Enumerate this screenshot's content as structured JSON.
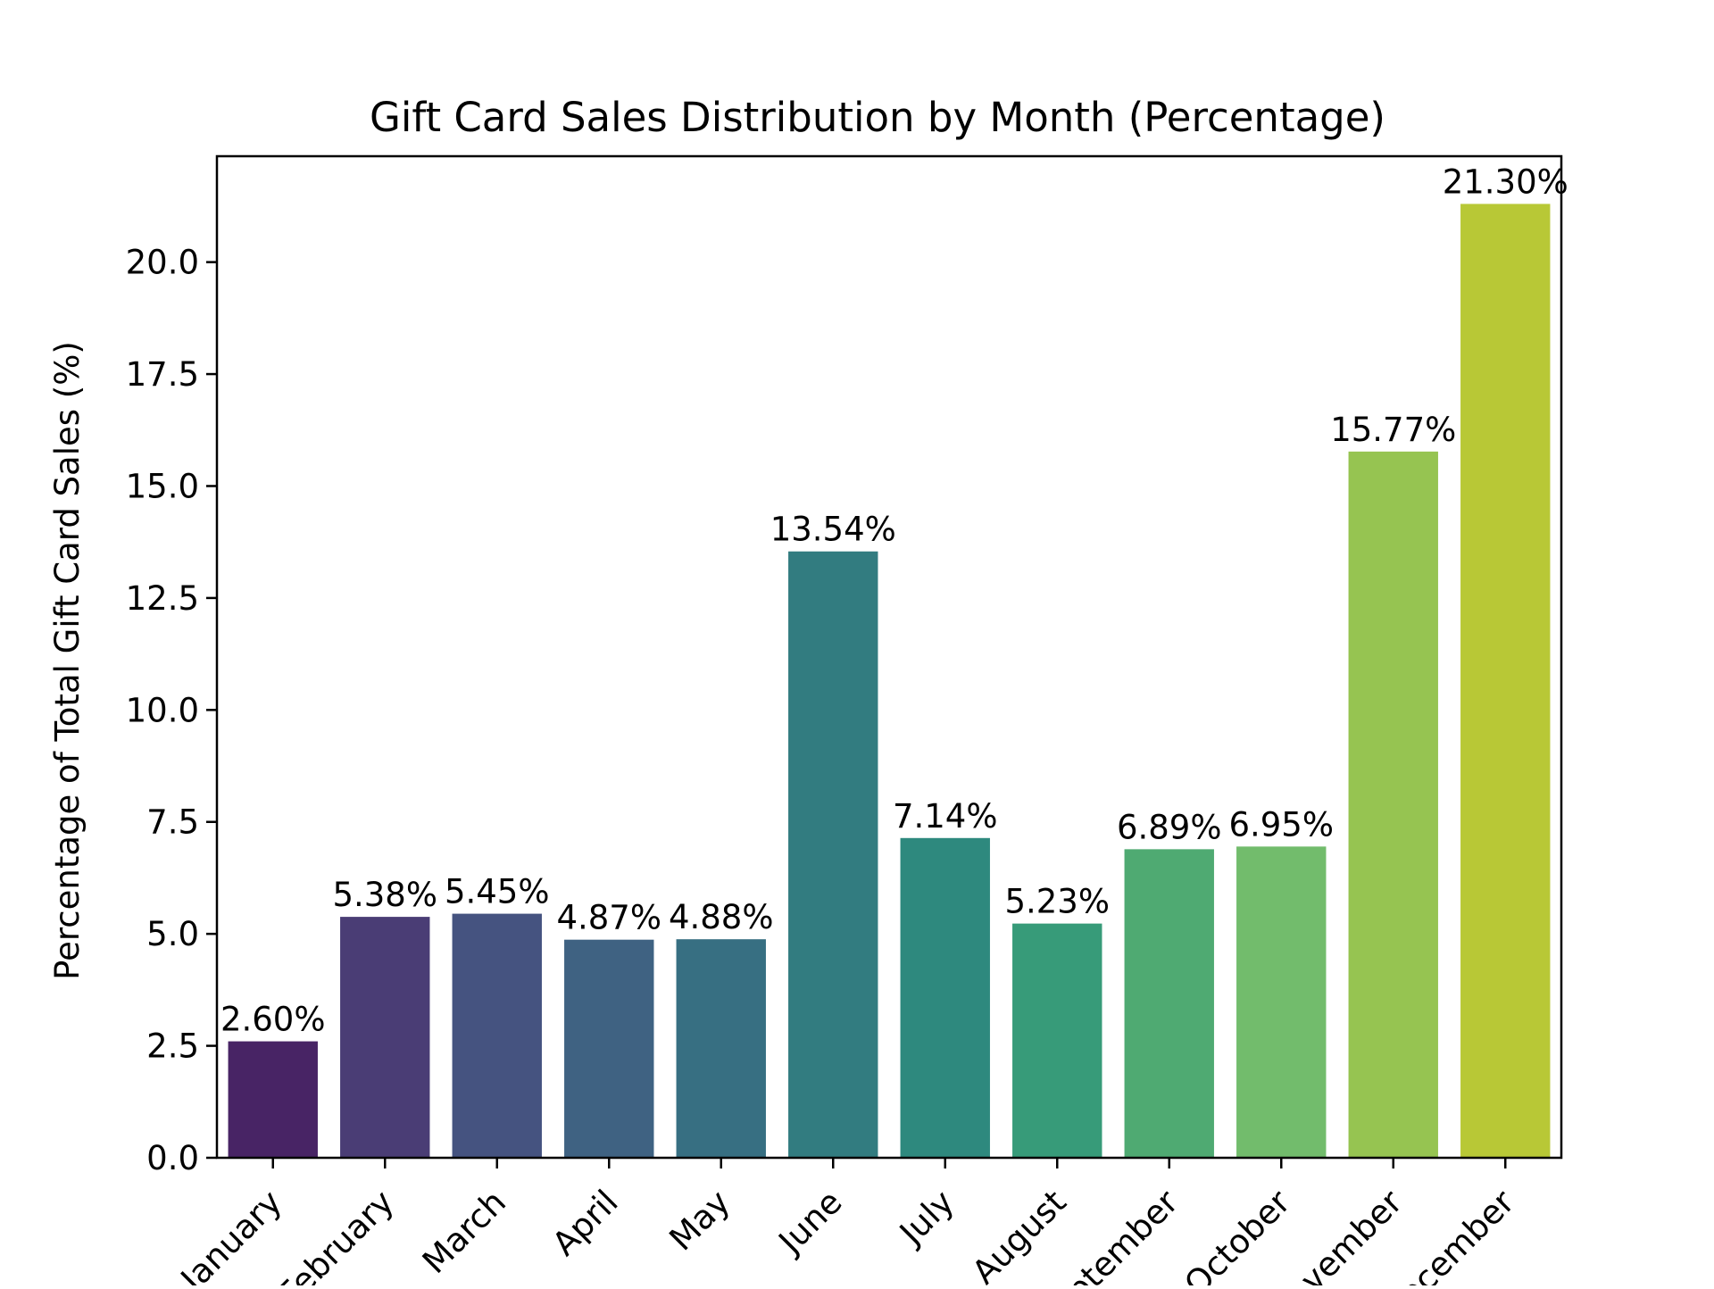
{
  "chart_data": {
    "type": "bar",
    "title": "Gift Card Sales Distribution by Month (Percentage)",
    "xlabel": "",
    "ylabel": "Percentage of Total Gift Card Sales (%)",
    "categories": [
      "January",
      "February",
      "March",
      "April",
      "May",
      "June",
      "July",
      "August",
      "September",
      "October",
      "November",
      "December"
    ],
    "values": [
      2.6,
      5.38,
      5.45,
      4.87,
      4.88,
      13.54,
      7.14,
      5.23,
      6.89,
      6.95,
      15.77,
      21.3
    ],
    "value_labels": [
      "2.60%",
      "5.38%",
      "5.45%",
      "4.87%",
      "4.88%",
      "13.54%",
      "7.14%",
      "5.23%",
      "6.89%",
      "6.95%",
      "15.77%",
      "21.30%"
    ],
    "colors": [
      "#482465",
      "#4a3d75",
      "#455380",
      "#3f6282",
      "#376f82",
      "#327c80",
      "#2e897e",
      "#379b79",
      "#4faa72",
      "#72bc6c",
      "#96c451",
      "#b8c836"
    ],
    "ylim": [
      0,
      22.365
    ],
    "yticks": [
      "0.0",
      "2.5",
      "5.0",
      "7.5",
      "10.0",
      "12.5",
      "15.0",
      "17.5",
      "20.0"
    ],
    "x_tick_rotation": 45,
    "grid": false,
    "legend": "none"
  }
}
